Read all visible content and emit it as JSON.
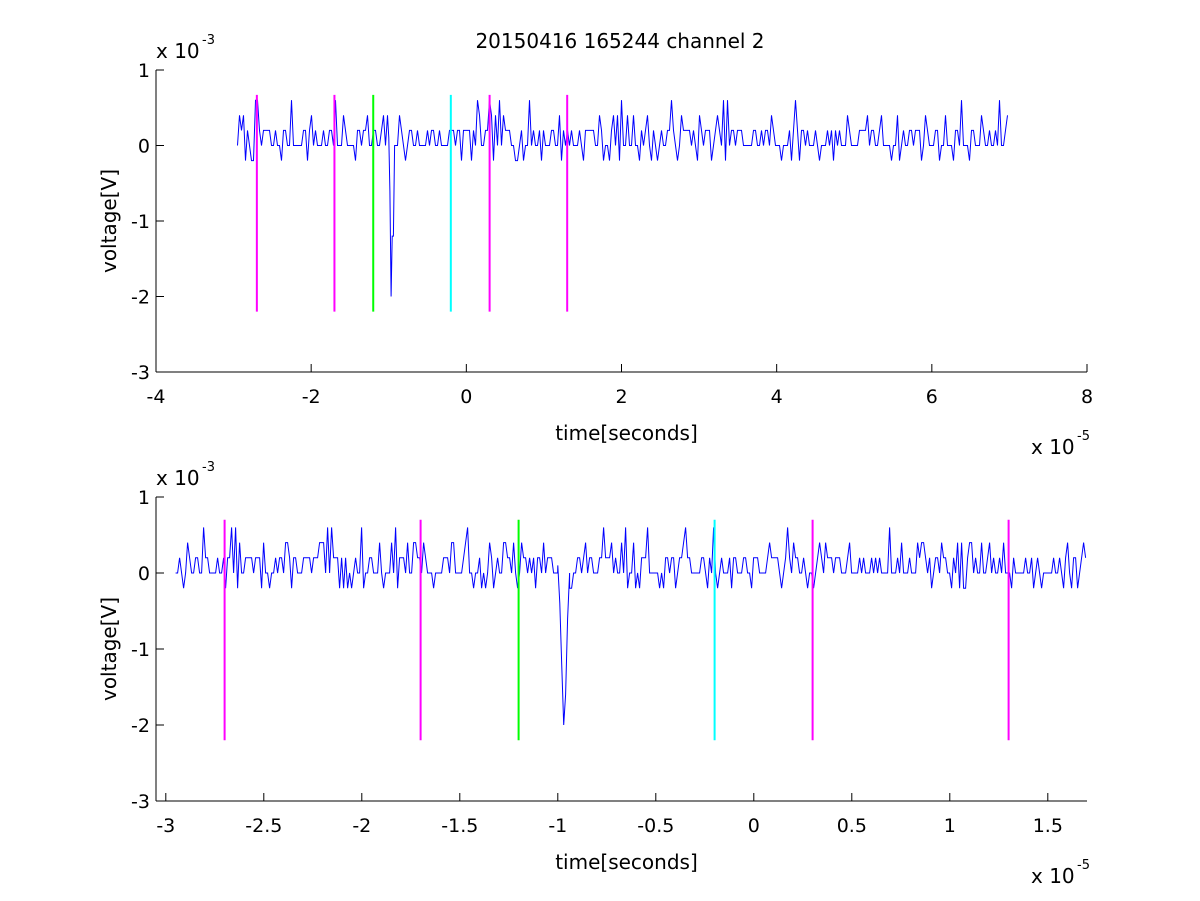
{
  "title": "20150416 165244 channel 2",
  "chart_data": [
    {
      "type": "line",
      "id": "top",
      "title": "20150416 165244 channel 2",
      "xlabel": "time[seconds]",
      "ylabel": "voltage[V]",
      "x_multiplier_label": "x 10",
      "x_multiplier_exp": "-5",
      "y_multiplier_label": "x 10",
      "y_multiplier_exp": "-3",
      "xlim": [
        -4,
        8
      ],
      "ylim": [
        -3,
        1
      ],
      "xticks": [
        -4,
        -2,
        0,
        2,
        4,
        6,
        8
      ],
      "xtick_labels": [
        "-4",
        "-2",
        "0",
        "2",
        "4",
        "6",
        "8"
      ],
      "yticks": [
        -3,
        -2,
        -1,
        0,
        1
      ],
      "ytick_labels": [
        "-3",
        "-2",
        "-1",
        "0",
        "1"
      ],
      "series": [
        {
          "color": "#0000ff",
          "x_start": -2.95,
          "x_end": 7.0,
          "noise_levels": [
            -0.2,
            0,
            0.2,
            0.4,
            0.6
          ],
          "noise_probabilities": [
            0.1,
            0.42,
            0.36,
            0.09,
            0.03
          ],
          "seed": 7,
          "spike": {
            "points": [
              [
                -1.0,
                0.1
              ],
              [
                -0.985,
                -0.6
              ],
              [
                -0.97,
                -2.0
              ],
              [
                -0.955,
                -1.2
              ],
              [
                -0.94,
                -1.2
              ],
              [
                -0.925,
                0.0
              ]
            ]
          }
        }
      ],
      "markers": [
        {
          "x": -2.7,
          "y_bottom": -2.2,
          "y_top": 0.67,
          "color": "#ff00ff"
        },
        {
          "x": -1.7,
          "y_bottom": -2.2,
          "y_top": 0.67,
          "color": "#ff00ff"
        },
        {
          "x": -1.2,
          "y_bottom": -2.2,
          "y_top": 0.67,
          "color": "#00ff00"
        },
        {
          "x": -0.2,
          "y_bottom": -2.2,
          "y_top": 0.67,
          "color": "#00ffff"
        },
        {
          "x": 0.3,
          "y_bottom": -2.2,
          "y_top": 0.67,
          "color": "#ff00ff"
        },
        {
          "x": 1.3,
          "y_bottom": -2.2,
          "y_top": 0.67,
          "color": "#ff00ff"
        }
      ],
      "grid": false
    },
    {
      "type": "line",
      "id": "bottom",
      "title": "",
      "xlabel": "time[seconds]",
      "ylabel": "voltage[V]",
      "x_multiplier_label": "x 10",
      "x_multiplier_exp": "-5",
      "y_multiplier_label": "x 10",
      "y_multiplier_exp": "-3",
      "xlim": [
        -3.05,
        1.7
      ],
      "ylim": [
        -3,
        1
      ],
      "xticks": [
        -3,
        -2.5,
        -2,
        -1.5,
        -1,
        -0.5,
        0,
        0.5,
        1,
        1.5
      ],
      "xtick_labels": [
        "-3",
        "-2.5",
        "-2",
        "-1.5",
        "-1",
        "-0.5",
        "0",
        "0.5",
        "1",
        "1.5"
      ],
      "yticks": [
        -3,
        -2,
        -1,
        0,
        1
      ],
      "ytick_labels": [
        "-3",
        "-2",
        "-1",
        "0",
        "1"
      ],
      "series": [
        {
          "color": "#0000ff",
          "x_start": -2.95,
          "x_end": 1.7,
          "noise_levels": [
            -0.2,
            0,
            0.2,
            0.4,
            0.6
          ],
          "noise_probabilities": [
            0.1,
            0.42,
            0.36,
            0.09,
            0.03
          ],
          "seed": 13,
          "spike": {
            "points": [
              [
                -1.0,
                0.1
              ],
              [
                -0.99,
                -0.4
              ],
              [
                -0.98,
                -1.2
              ],
              [
                -0.97,
                -2.0
              ],
              [
                -0.96,
                -1.6
              ],
              [
                -0.95,
                -0.6
              ],
              [
                -0.94,
                0.0
              ]
            ]
          }
        }
      ],
      "markers": [
        {
          "x": -2.7,
          "y_bottom": -2.2,
          "y_top": 0.7,
          "color": "#ff00ff"
        },
        {
          "x": -1.7,
          "y_bottom": -2.2,
          "y_top": 0.7,
          "color": "#ff00ff"
        },
        {
          "x": -1.2,
          "y_bottom": -2.2,
          "y_top": 0.7,
          "color": "#00ff00"
        },
        {
          "x": -0.2,
          "y_bottom": -2.2,
          "y_top": 0.7,
          "color": "#00ffff"
        },
        {
          "x": 0.3,
          "y_bottom": -2.2,
          "y_top": 0.7,
          "color": "#ff00ff"
        },
        {
          "x": 1.3,
          "y_bottom": -2.2,
          "y_top": 0.7,
          "color": "#ff00ff"
        }
      ],
      "grid": false
    }
  ]
}
